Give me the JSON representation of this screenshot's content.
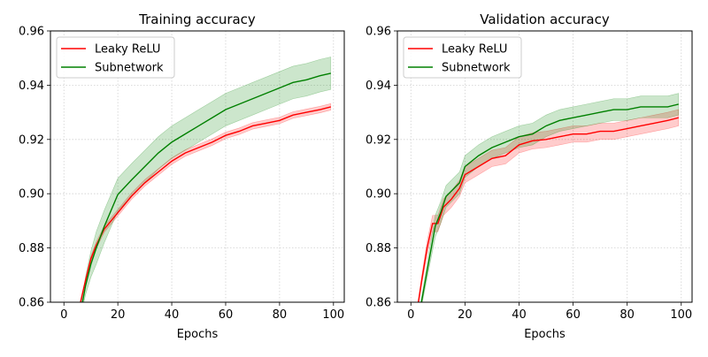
{
  "chart_data": [
    {
      "type": "line",
      "title": "Training accuracy",
      "xlabel": "Epochs",
      "ylabel": "",
      "xlim": [
        -5,
        104
      ],
      "ylim": [
        0.86,
        0.96
      ],
      "xticks": [
        "0",
        "20",
        "40",
        "60",
        "80",
        "100"
      ],
      "yticks": [
        "0.86",
        "0.88",
        "0.90",
        "0.92",
        "0.94",
        "0.96"
      ],
      "grid": true,
      "legend_position": "top-left",
      "series": [
        {
          "name": "Leaky ReLU",
          "color": "#ff0000",
          "x": [
            5,
            8,
            10,
            12,
            15,
            20,
            25,
            30,
            35,
            40,
            45,
            50,
            55,
            60,
            65,
            70,
            75,
            80,
            85,
            90,
            95,
            99
          ],
          "y": [
            0.855,
            0.868,
            0.876,
            0.881,
            0.887,
            0.893,
            0.899,
            0.904,
            0.908,
            0.912,
            0.915,
            0.917,
            0.919,
            0.9215,
            0.923,
            0.925,
            0.926,
            0.927,
            0.929,
            0.93,
            0.931,
            0.932
          ],
          "band": 0.0012
        },
        {
          "name": "Subnetwork",
          "color": "#008000",
          "x": [
            6,
            8,
            10,
            12,
            15,
            20,
            25,
            30,
            35,
            40,
            45,
            50,
            55,
            60,
            65,
            70,
            75,
            80,
            85,
            90,
            95,
            99
          ],
          "y": [
            0.855,
            0.866,
            0.874,
            0.88,
            0.888,
            0.8997,
            0.905,
            0.91,
            0.915,
            0.919,
            0.922,
            0.925,
            0.928,
            0.931,
            0.933,
            0.935,
            0.937,
            0.939,
            0.941,
            0.942,
            0.9435,
            0.9444
          ],
          "band": 0.006
        }
      ]
    },
    {
      "type": "line",
      "title": "Validation accuracy",
      "xlabel": "Epochs",
      "ylabel": "",
      "xlim": [
        -5,
        104
      ],
      "ylim": [
        0.86,
        0.96
      ],
      "xticks": [
        "0",
        "20",
        "40",
        "60",
        "80",
        "100"
      ],
      "yticks": [
        "0.86",
        "0.88",
        "0.90",
        "0.92",
        "0.94",
        "0.96"
      ],
      "grid": true,
      "legend_position": "top-left",
      "series": [
        {
          "name": "Leaky ReLU",
          "color": "#ff0000",
          "x": [
            2,
            4,
            6,
            8,
            10,
            12,
            15,
            18,
            20,
            25,
            30,
            35,
            40,
            45,
            50,
            55,
            60,
            65,
            70,
            75,
            80,
            85,
            90,
            95,
            99
          ],
          "y": [
            0.855,
            0.868,
            0.88,
            0.889,
            0.889,
            0.895,
            0.898,
            0.902,
            0.907,
            0.91,
            0.913,
            0.914,
            0.918,
            0.9195,
            0.92,
            0.921,
            0.922,
            0.922,
            0.923,
            0.923,
            0.924,
            0.925,
            0.926,
            0.927,
            0.928
          ],
          "band": 0.003
        },
        {
          "name": "Subnetwork",
          "color": "#008000",
          "x": [
            3,
            5,
            7,
            9,
            11,
            13,
            15,
            18,
            20,
            25,
            30,
            35,
            40,
            45,
            50,
            55,
            60,
            65,
            70,
            75,
            80,
            85,
            90,
            95,
            99
          ],
          "y": [
            0.855,
            0.866,
            0.877,
            0.888,
            0.893,
            0.899,
            0.901,
            0.904,
            0.91,
            0.914,
            0.917,
            0.919,
            0.921,
            0.922,
            0.925,
            0.927,
            0.928,
            0.929,
            0.93,
            0.931,
            0.931,
            0.932,
            0.932,
            0.932,
            0.933
          ],
          "band": 0.004
        }
      ]
    }
  ]
}
